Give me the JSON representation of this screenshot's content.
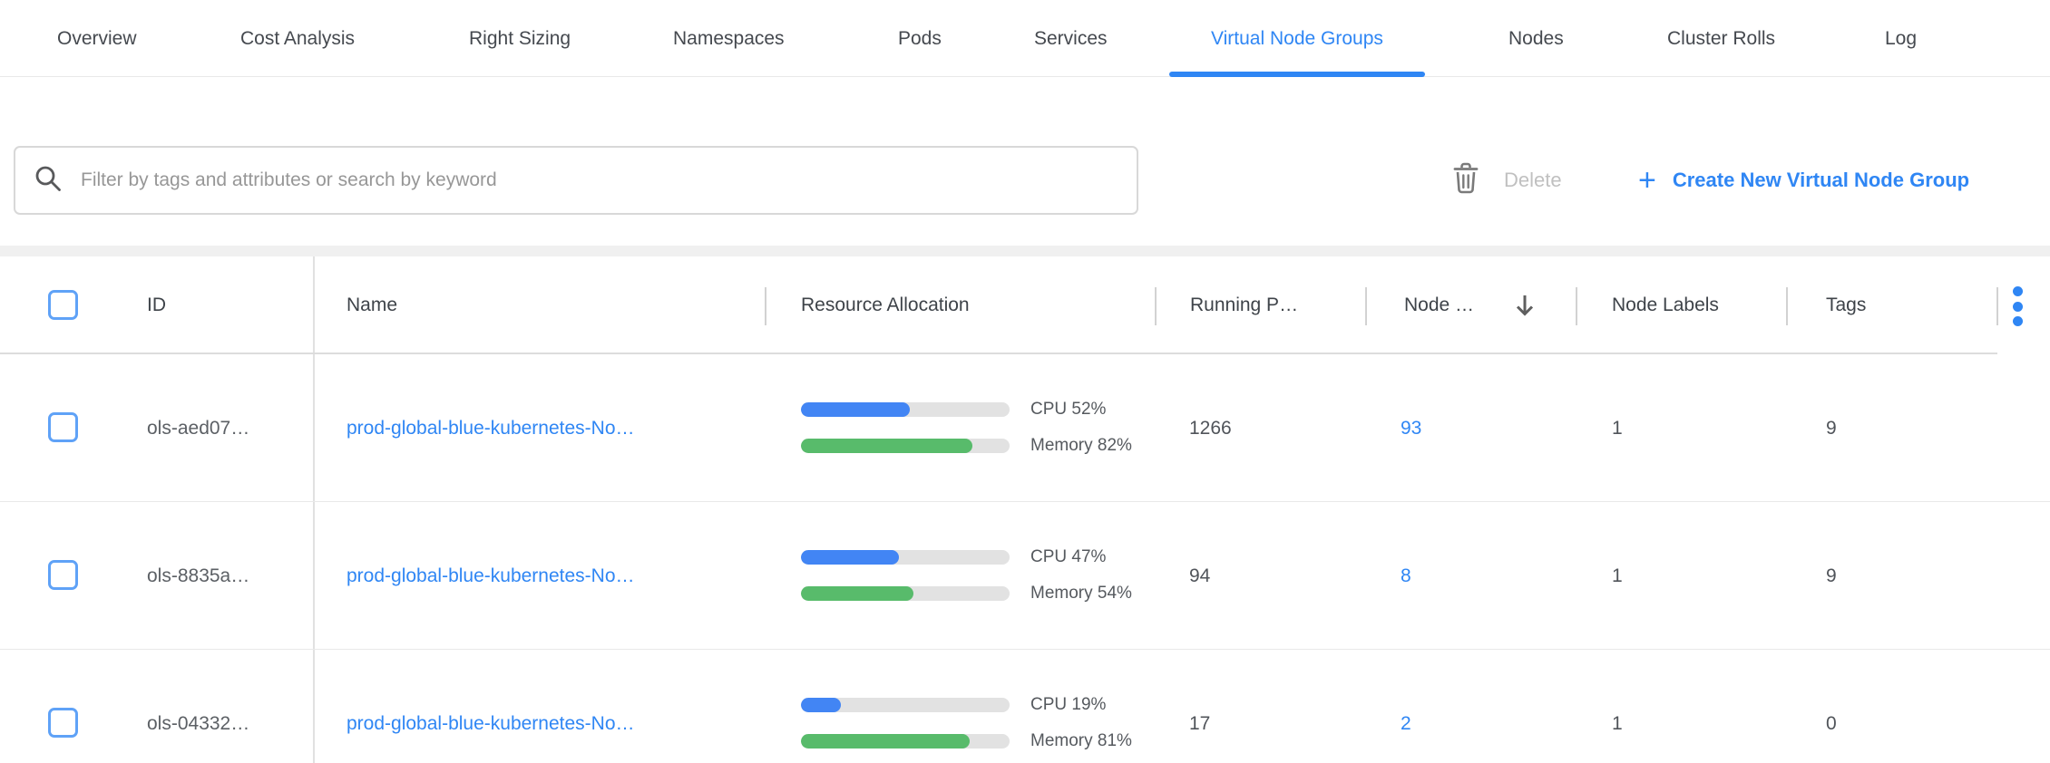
{
  "tabs": [
    {
      "label": "Overview",
      "active": false
    },
    {
      "label": "Cost Analysis",
      "active": false
    },
    {
      "label": "Right Sizing",
      "active": false
    },
    {
      "label": "Namespaces",
      "active": false
    },
    {
      "label": "Pods",
      "active": false
    },
    {
      "label": "Services",
      "active": false
    },
    {
      "label": "Virtual Node Groups",
      "active": true
    },
    {
      "label": "Nodes",
      "active": false
    },
    {
      "label": "Cluster Rolls",
      "active": false
    },
    {
      "label": "Log",
      "active": false
    }
  ],
  "toolbar": {
    "search_placeholder": "Filter by tags and attributes or search by keyword",
    "delete_label": "Delete",
    "plus_icon": "+",
    "create_label": "Create New Virtual Node Group"
  },
  "table": {
    "columns": {
      "id": "ID",
      "name": "Name",
      "resource": "Resource Allocation",
      "running_pods": "Running P…",
      "node_count": "Node …",
      "node_labels": "Node Labels",
      "tags": "Tags"
    },
    "rows": [
      {
        "id": "ols-aed07…",
        "name": "prod-global-blue-kubernetes-No…",
        "cpu_pct": 52,
        "cpu_label": "CPU 52%",
        "memory_pct": 82,
        "memory_label": "Memory 82%",
        "running_pods": "1266",
        "node_count": "93",
        "node_labels": "1",
        "tags": "9"
      },
      {
        "id": "ols-8835a…",
        "name": "prod-global-blue-kubernetes-No…",
        "cpu_pct": 47,
        "cpu_label": "CPU 47%",
        "memory_pct": 54,
        "memory_label": "Memory 54%",
        "running_pods": "94",
        "node_count": "8",
        "node_labels": "1",
        "tags": "9"
      },
      {
        "id": "ols-04332…",
        "name": "prod-global-blue-kubernetes-No…",
        "cpu_pct": 19,
        "cpu_label": "CPU 19%",
        "memory_pct": 81,
        "memory_label": "Memory 81%",
        "running_pods": "17",
        "node_count": "2",
        "node_labels": "1",
        "tags": "0"
      }
    ]
  },
  "colors": {
    "accent_blue": "#2f86f4",
    "bar_blue": "#4285f4",
    "bar_green": "#58bb6b",
    "bar_track": "#e2e2e2",
    "checkbox_blue": "#5fa2f7",
    "disabled_text": "#c0c0c0",
    "icon_gray": "#7a7a7a",
    "text_dark": "#45494f",
    "border_light": "#e9e9e9"
  }
}
